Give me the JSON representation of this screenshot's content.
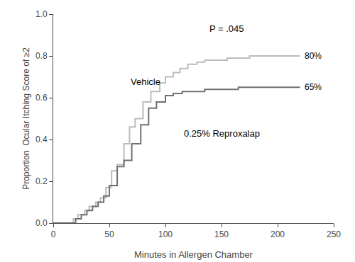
{
  "chart_data": {
    "type": "step",
    "xlabel": "Minutes in Allergen Chamber",
    "ylabel": "Proportion  Ocular Itching Score of ≥2",
    "xlim": [
      0,
      250
    ],
    "ylim": [
      0.0,
      1.0
    ],
    "xticks": [
      0,
      50,
      100,
      150,
      200,
      250
    ],
    "yticks": [
      {
        "value": 0.0,
        "label": "0.0"
      },
      {
        "value": 0.2,
        "label": "0.2"
      },
      {
        "value": 0.4,
        "label": "0.4"
      },
      {
        "value": 0.6,
        "label": "0.6"
      },
      {
        "value": 0.8,
        "label": "0.8"
      },
      {
        "value": 1.0,
        "label": "1.0"
      }
    ],
    "grid": false,
    "series": [
      {
        "color": "#bbbbbb",
        "x": [
          0,
          18,
          22,
          28,
          32,
          38,
          42,
          47,
          52,
          57,
          63,
          68,
          73,
          80,
          87,
          95,
          100,
          107,
          113,
          120,
          128,
          135,
          145,
          155,
          165,
          175,
          185,
          200,
          210,
          220
        ],
        "values": [
          0.0,
          0.02,
          0.04,
          0.06,
          0.08,
          0.1,
          0.12,
          0.17,
          0.25,
          0.28,
          0.38,
          0.46,
          0.5,
          0.58,
          0.63,
          0.67,
          0.7,
          0.72,
          0.74,
          0.76,
          0.77,
          0.78,
          0.78,
          0.79,
          0.79,
          0.8,
          0.8,
          0.8,
          0.8,
          0.8
        ],
        "end_label": "80%"
      },
      {
        "color": "#707070",
        "x": [
          0,
          20,
          25,
          30,
          35,
          40,
          45,
          50,
          57,
          63,
          70,
          78,
          85,
          92,
          100,
          107,
          115,
          125,
          135,
          150,
          165,
          185,
          200,
          210,
          220
        ],
        "values": [
          0.0,
          0.02,
          0.04,
          0.06,
          0.08,
          0.1,
          0.13,
          0.18,
          0.27,
          0.3,
          0.38,
          0.47,
          0.55,
          0.58,
          0.61,
          0.62,
          0.63,
          0.63,
          0.64,
          0.64,
          0.65,
          0.65,
          0.65,
          0.65,
          0.65
        ],
        "end_label": "65%"
      }
    ],
    "annotations": [
      {
        "text": "P = .045",
        "x": 155,
        "y": 0.9,
        "align": "center"
      },
      {
        "text": "Vehicle",
        "x": 68,
        "y": 0.645,
        "align": "left"
      },
      {
        "text": "0.25% Reproxalap",
        "x": 115,
        "y": 0.395,
        "align": "left"
      }
    ]
  }
}
